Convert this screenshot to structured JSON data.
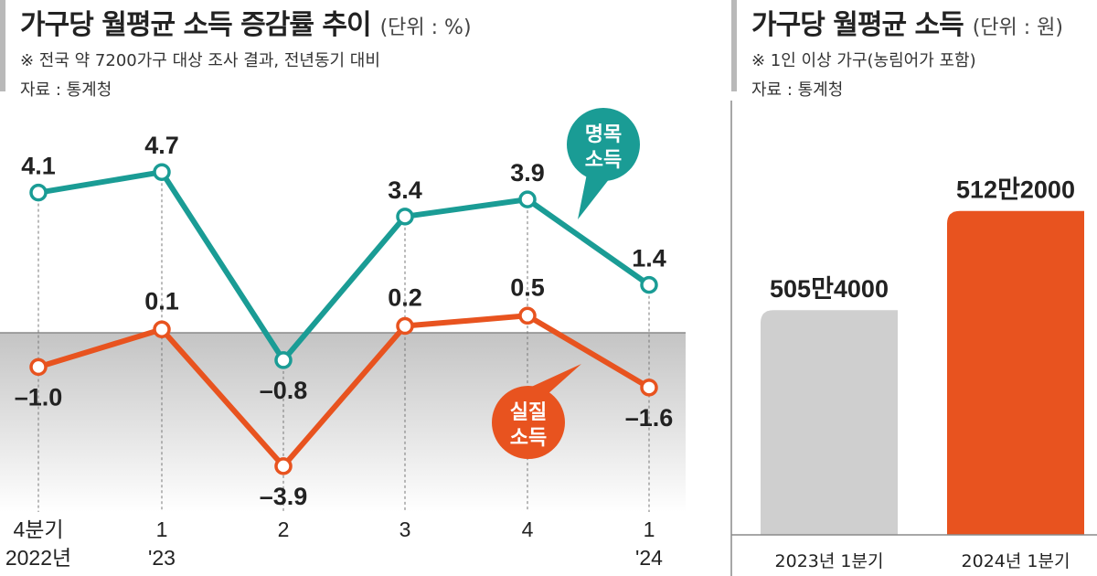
{
  "left": {
    "title": "가구당 월평균 소득 증감률 추이",
    "unit": "(단위 : %)",
    "note": "※ 전국 약 7200가구 대상 조사 결과, 전년동기 대비",
    "source": "자료 : 통계청"
  },
  "right": {
    "title": "가구당 월평균 소득",
    "unit": "(단위 : 원)",
    "note": "※ 1인 이상 가구(농림어가 포함)",
    "source": "자료 : 통계청"
  },
  "chart_data": [
    {
      "type": "line",
      "title": "가구당 월평균 소득 증감률 추이",
      "unit": "%",
      "ylim": [
        -5,
        6
      ],
      "categories": [
        {
          "line1": "4분기",
          "line2": "2022년"
        },
        {
          "line1": "1",
          "line2": "'23"
        },
        {
          "line1": "2",
          "line2": ""
        },
        {
          "line1": "3",
          "line2": ""
        },
        {
          "line1": "4",
          "line2": ""
        },
        {
          "line1": "1",
          "line2": "'24"
        }
      ],
      "series": [
        {
          "name": "명목 소득",
          "name_lines": [
            "명목",
            "소득"
          ],
          "color": "#1a9c95",
          "values": [
            4.1,
            4.7,
            -0.8,
            3.4,
            3.9,
            1.4
          ],
          "labels": [
            "4.1",
            "4.7",
            "–0.8",
            "3.4",
            "3.9",
            "1.4"
          ]
        },
        {
          "name": "실질 소득",
          "name_lines": [
            "실질",
            "소득"
          ],
          "color": "#e8531f",
          "values": [
            -1.0,
            0.1,
            -3.9,
            0.2,
            0.5,
            -1.6
          ],
          "labels": [
            "–1.0",
            "0.1",
            "–3.9",
            "0.2",
            "0.5",
            "–1.6"
          ]
        }
      ]
    },
    {
      "type": "bar",
      "title": "가구당 월평균 소득",
      "unit": "원",
      "categories": [
        "2023년 1분기",
        "2024년 1분기"
      ],
      "values": [
        5054000,
        5122000
      ],
      "labels": [
        "505만4000",
        "512만2000"
      ],
      "colors": [
        "#cfcfcf",
        "#e8531f"
      ]
    }
  ]
}
